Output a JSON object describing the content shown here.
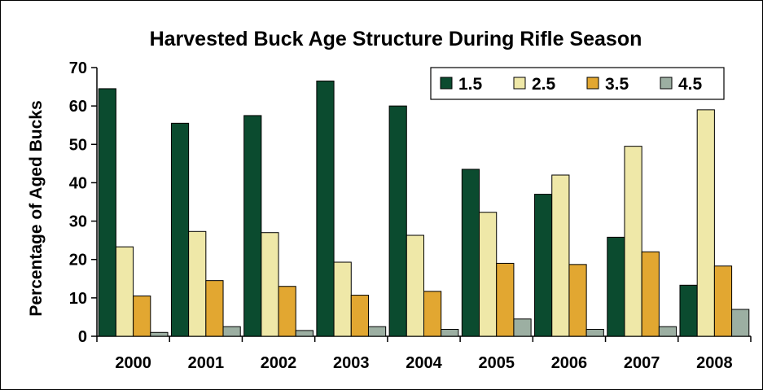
{
  "chart_data": {
    "type": "bar",
    "title": "Harvested Buck Age Structure During Rifle Season",
    "xlabel": "",
    "ylabel": "Percentage of Aged Bucks",
    "ylim": [
      0,
      70
    ],
    "yticks": [
      0,
      10,
      20,
      30,
      40,
      50,
      60,
      70
    ],
    "grid": false,
    "legend_position": "top-right",
    "categories": [
      "2000",
      "2001",
      "2002",
      "2003",
      "2004",
      "2005",
      "2006",
      "2007",
      "2008"
    ],
    "series": [
      {
        "name": "1.5",
        "color": "#0b4b2f",
        "values": [
          64.5,
          55.5,
          57.5,
          66.5,
          60.0,
          43.5,
          37.0,
          25.8,
          13.3
        ]
      },
      {
        "name": "2.5",
        "color": "#efe8a8",
        "values": [
          23.3,
          27.3,
          27.0,
          19.3,
          26.3,
          32.3,
          42.0,
          49.5,
          59.0
        ]
      },
      {
        "name": "3.5",
        "color": "#e2a731",
        "values": [
          10.5,
          14.5,
          13.0,
          10.7,
          11.7,
          19.0,
          18.7,
          22.0,
          18.3
        ]
      },
      {
        "name": "4.5",
        "color": "#9cafa2",
        "values": [
          1.0,
          2.5,
          1.5,
          2.5,
          1.8,
          4.5,
          1.8,
          2.5,
          7.0
        ]
      }
    ]
  }
}
